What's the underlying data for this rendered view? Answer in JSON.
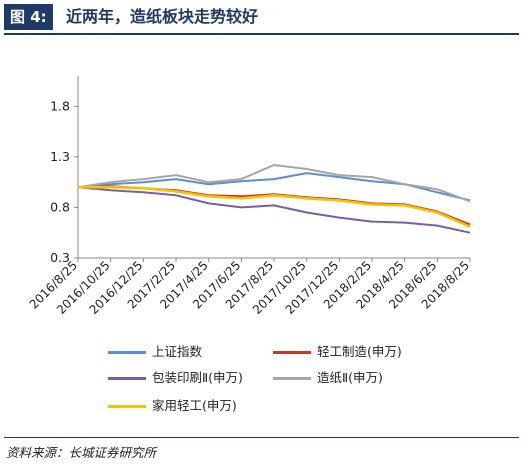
{
  "header": {
    "figure_label": "图 4:",
    "title": "近两年，造纸板块走势较好"
  },
  "colors": {
    "brand": "#1f3a66",
    "series": [
      "#5b8fd1",
      "#c0392b",
      "#7b5ea7",
      "#a6a6a6",
      "#f5c100"
    ]
  },
  "legend": {
    "items": [
      {
        "label": "上证指数",
        "color": "#5b8fd1"
      },
      {
        "label": "轻工制造(申万)",
        "color": "#c0392b"
      },
      {
        "label": "包装印刷Ⅱ(申万)",
        "color": "#7b5ea7"
      },
      {
        "label": "造纸Ⅱ(申万)",
        "color": "#a6a6a6"
      },
      {
        "label": "家用轻工(申万)",
        "color": "#f5c100"
      }
    ]
  },
  "source": "资料来源：长城证券研究所",
  "chart_data": {
    "type": "line",
    "title": "",
    "xlabel": "",
    "ylabel": "",
    "ylim": [
      0.3,
      2.1
    ],
    "yticks": [
      0.3,
      0.8,
      1.3,
      1.8
    ],
    "x": [
      "2016/8/25",
      "2016/10/25",
      "2016/12/25",
      "2017/2/25",
      "2017/4/25",
      "2017/6/25",
      "2017/8/25",
      "2017/10/25",
      "2017/12/25",
      "2018/2/25",
      "2018/4/25",
      "2018/6/25",
      "2018/8/25"
    ],
    "grid": false,
    "legend_position": "bottom",
    "series": [
      {
        "name": "上证指数",
        "values": [
          1.0,
          1.03,
          1.05,
          1.08,
          1.03,
          1.06,
          1.08,
          1.14,
          1.1,
          1.06,
          1.03,
          0.95,
          0.87
        ]
      },
      {
        "name": "轻工制造(申万)",
        "values": [
          1.0,
          1.01,
          0.99,
          0.97,
          0.92,
          0.91,
          0.93,
          0.9,
          0.88,
          0.84,
          0.83,
          0.76,
          0.63
        ]
      },
      {
        "name": "包装印刷Ⅱ(申万)",
        "values": [
          1.0,
          0.97,
          0.95,
          0.92,
          0.84,
          0.8,
          0.82,
          0.75,
          0.7,
          0.66,
          0.65,
          0.62,
          0.55
        ]
      },
      {
        "name": "造纸Ⅱ(申万)",
        "values": [
          1.0,
          1.05,
          1.08,
          1.12,
          1.05,
          1.08,
          1.22,
          1.18,
          1.12,
          1.1,
          1.03,
          0.98,
          0.86
        ]
      },
      {
        "name": "家用轻工(申万)",
        "values": [
          1.0,
          1.0,
          0.99,
          0.96,
          0.91,
          0.89,
          0.92,
          0.89,
          0.87,
          0.83,
          0.82,
          0.75,
          0.61
        ]
      }
    ]
  }
}
